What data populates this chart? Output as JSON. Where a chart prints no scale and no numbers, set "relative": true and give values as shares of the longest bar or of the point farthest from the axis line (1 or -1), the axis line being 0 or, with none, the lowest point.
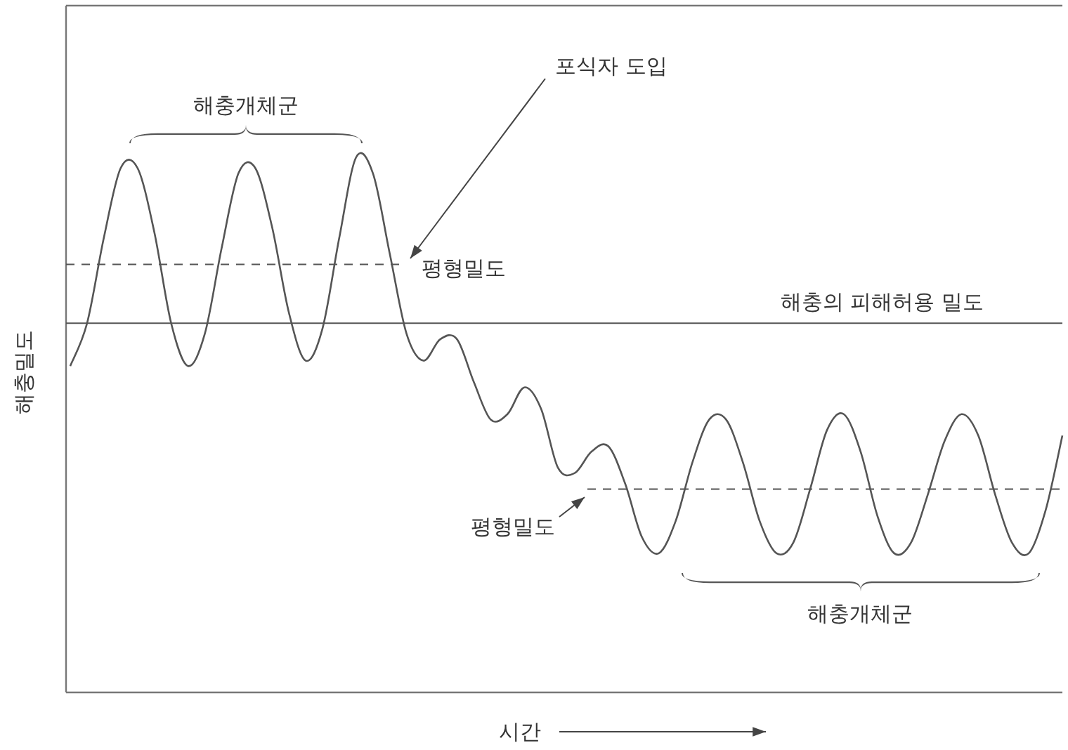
{
  "chart_data": {
    "type": "line",
    "relative": true,
    "xlabel": "시간",
    "ylabel": "해충밀도",
    "categories": [
      null,
      null,
      null,
      null,
      null,
      null,
      null,
      null,
      null,
      null,
      null,
      null,
      null,
      null,
      null,
      null,
      null,
      null,
      null,
      null,
      null,
      null,
      null,
      null,
      null,
      null,
      null,
      null,
      null,
      null,
      null,
      null,
      null,
      null,
      null,
      null,
      null,
      null,
      null,
      null,
      null,
      null,
      null,
      null,
      null,
      null,
      null,
      null,
      null,
      null,
      null,
      null,
      null,
      null,
      null,
      null,
      null,
      null,
      null,
      null
    ],
    "series": [
      {
        "color": "#555555",
        "values": [
          0.61,
          0.69,
          0.85,
          0.98,
          0.98,
          0.86,
          0.69,
          0.61,
          0.67,
          0.83,
          0.97,
          0.98,
          0.87,
          0.71,
          0.62,
          0.68,
          0.85,
          1.0,
          0.97,
          0.82,
          0.67,
          0.62,
          0.66,
          0.66,
          0.58,
          0.51,
          0.52,
          0.57,
          0.53,
          0.42,
          0.41,
          0.45,
          0.46,
          0.39,
          0.29,
          0.26,
          0.32,
          0.43,
          0.51,
          0.51,
          0.43,
          0.32,
          0.26,
          0.28,
          0.38,
          0.49,
          0.52,
          0.45,
          0.33,
          0.26,
          0.28,
          0.37,
          0.47,
          0.52,
          0.48,
          0.37,
          0.28,
          0.26,
          0.34,
          0.48
        ]
      }
    ],
    "ref_lines": [
      {
        "axis": "y",
        "value": 0.8,
        "label": "평형밀도",
        "line_style": "dashed",
        "color": "#555555"
      },
      {
        "axis": "y",
        "value": 0.69,
        "label": "해충의 피해허용 밀도",
        "line_style": "solid",
        "color": "#555555"
      },
      {
        "axis": "y",
        "value": 0.38,
        "label": "평형밀도",
        "line_style": "dashed",
        "color": "#555555"
      }
    ],
    "annotations": [
      "해충개체군",
      "포식자 도입",
      "해충개체군"
    ],
    "marker": "none",
    "line_style": "solid",
    "grid": false
  }
}
